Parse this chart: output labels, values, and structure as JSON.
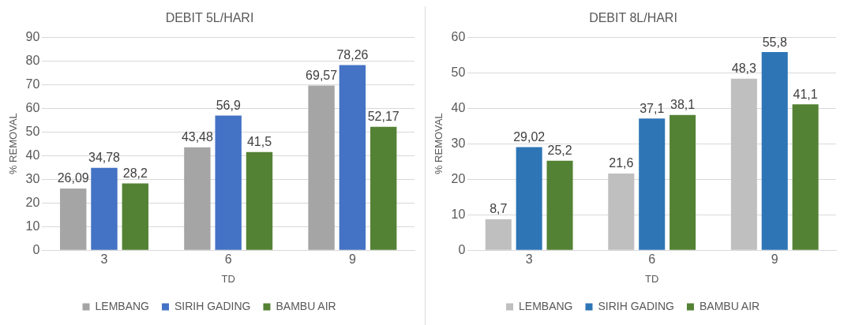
{
  "chart_data": [
    {
      "type": "bar",
      "title": "DEBIT 5L/HARI",
      "xlabel": "TD",
      "ylabel": "% REMOVAL",
      "categories": [
        "3",
        "6",
        "9"
      ],
      "ylim": [
        0,
        90
      ],
      "yticks": [
        0,
        10,
        20,
        30,
        40,
        50,
        60,
        70,
        80,
        90
      ],
      "grid": "y",
      "legend": "bottom",
      "series": [
        {
          "name": "LEMBANG",
          "color": "#a5a5a5",
          "values": [
            26.09,
            43.48,
            69.57
          ],
          "value_labels": [
            "26,09",
            "43,48",
            "69,57"
          ]
        },
        {
          "name": "SIRIH GADING",
          "color": "#4472c4",
          "values": [
            34.78,
            56.9,
            78.26
          ],
          "value_labels": [
            "34,78",
            "56,9",
            "78,26"
          ]
        },
        {
          "name": "BAMBU AIR",
          "color": "#548235",
          "values": [
            28.2,
            41.5,
            52.17
          ],
          "value_labels": [
            "28,2",
            "41,5",
            "52,17"
          ]
        }
      ]
    },
    {
      "type": "bar",
      "title": "DEBIT 8L/HARI",
      "xlabel": "TD",
      "ylabel": "% REMOVAL",
      "categories": [
        "3",
        "6",
        "9"
      ],
      "ylim": [
        0,
        60
      ],
      "yticks": [
        0,
        10,
        20,
        30,
        40,
        50,
        60
      ],
      "grid": "y",
      "legend": "bottom",
      "series": [
        {
          "name": "LEMBANG",
          "color": "#bfbfbf",
          "values": [
            8.7,
            21.6,
            48.3
          ],
          "value_labels": [
            "8,7",
            "21,6",
            "48,3"
          ]
        },
        {
          "name": "SIRIH GADING",
          "color": "#2e75b6",
          "values": [
            29.02,
            37.1,
            55.8
          ],
          "value_labels": [
            "29,02",
            "37,1",
            "55,8"
          ]
        },
        {
          "name": "BAMBU AIR",
          "color": "#548235",
          "values": [
            25.2,
            38.1,
            41.1
          ],
          "value_labels": [
            "25,2",
            "38,1",
            "41,1"
          ]
        }
      ]
    }
  ]
}
